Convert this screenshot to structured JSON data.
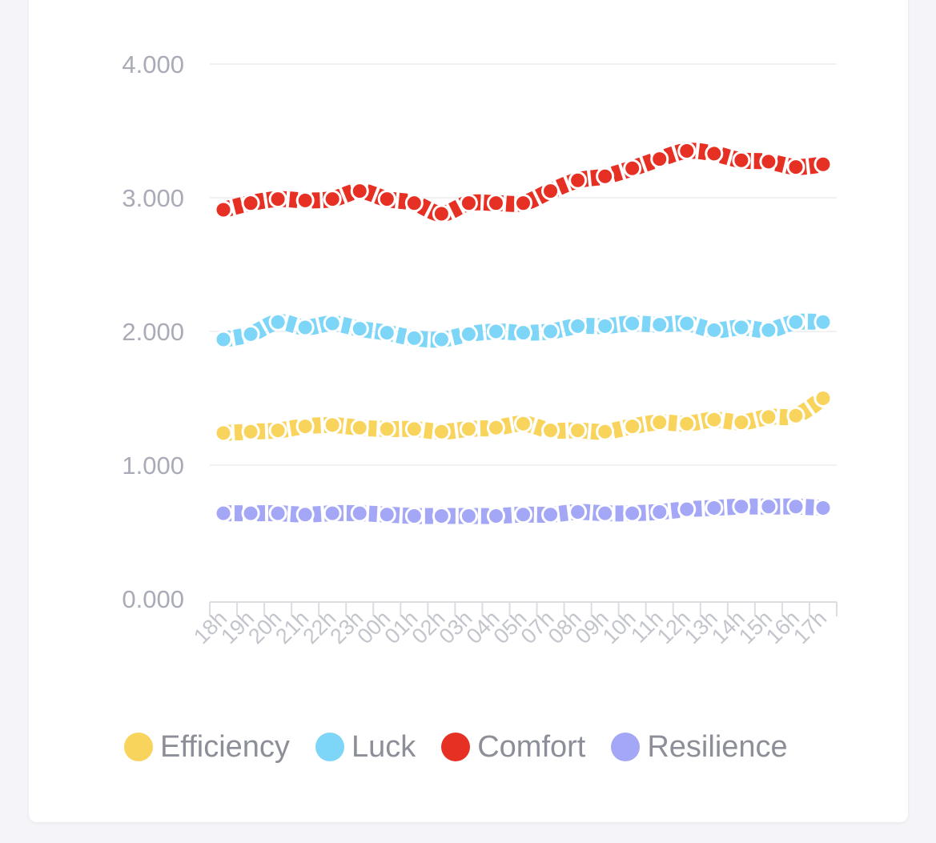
{
  "chart_data": {
    "type": "line",
    "x": [
      "18h",
      "19h",
      "20h",
      "21h",
      "22h",
      "23h",
      "00h",
      "01h",
      "02h",
      "03h",
      "04h",
      "05h",
      "07h",
      "08h",
      "09h",
      "10h",
      "11h",
      "12h",
      "13h",
      "14h",
      "15h",
      "16h",
      "17h"
    ],
    "ylim": [
      0,
      4
    ],
    "yticks": [
      "0.000",
      "1.000",
      "2.000",
      "3.000",
      "4.000"
    ],
    "grid": true,
    "legend_position": "bottom",
    "series": [
      {
        "name": "Efficiency",
        "color": "#f8d45c",
        "values": [
          1.24,
          1.25,
          1.26,
          1.29,
          1.3,
          1.28,
          1.27,
          1.27,
          1.25,
          1.27,
          1.28,
          1.31,
          1.26,
          1.26,
          1.25,
          1.29,
          1.32,
          1.31,
          1.34,
          1.32,
          1.36,
          1.37,
          1.5
        ]
      },
      {
        "name": "Luck",
        "color": "#7dd6f7",
        "values": [
          1.94,
          1.98,
          2.07,
          2.03,
          2.06,
          2.02,
          1.99,
          1.95,
          1.94,
          1.98,
          2.0,
          1.99,
          2.0,
          2.04,
          2.04,
          2.06,
          2.05,
          2.06,
          2.01,
          2.03,
          2.01,
          2.07,
          2.07
        ]
      },
      {
        "name": "Comfort",
        "color": "#e63024",
        "values": [
          2.91,
          2.96,
          2.99,
          2.98,
          2.99,
          3.05,
          2.99,
          2.96,
          2.88,
          2.96,
          2.96,
          2.96,
          3.05,
          3.13,
          3.16,
          3.22,
          3.29,
          3.35,
          3.33,
          3.28,
          3.27,
          3.23,
          3.25
        ]
      },
      {
        "name": "Resilience",
        "color": "#a4a7f6",
        "values": [
          0.64,
          0.64,
          0.64,
          0.63,
          0.64,
          0.64,
          0.63,
          0.62,
          0.62,
          0.62,
          0.62,
          0.63,
          0.63,
          0.65,
          0.64,
          0.64,
          0.65,
          0.67,
          0.68,
          0.69,
          0.69,
          0.69,
          0.68
        ]
      }
    ]
  }
}
